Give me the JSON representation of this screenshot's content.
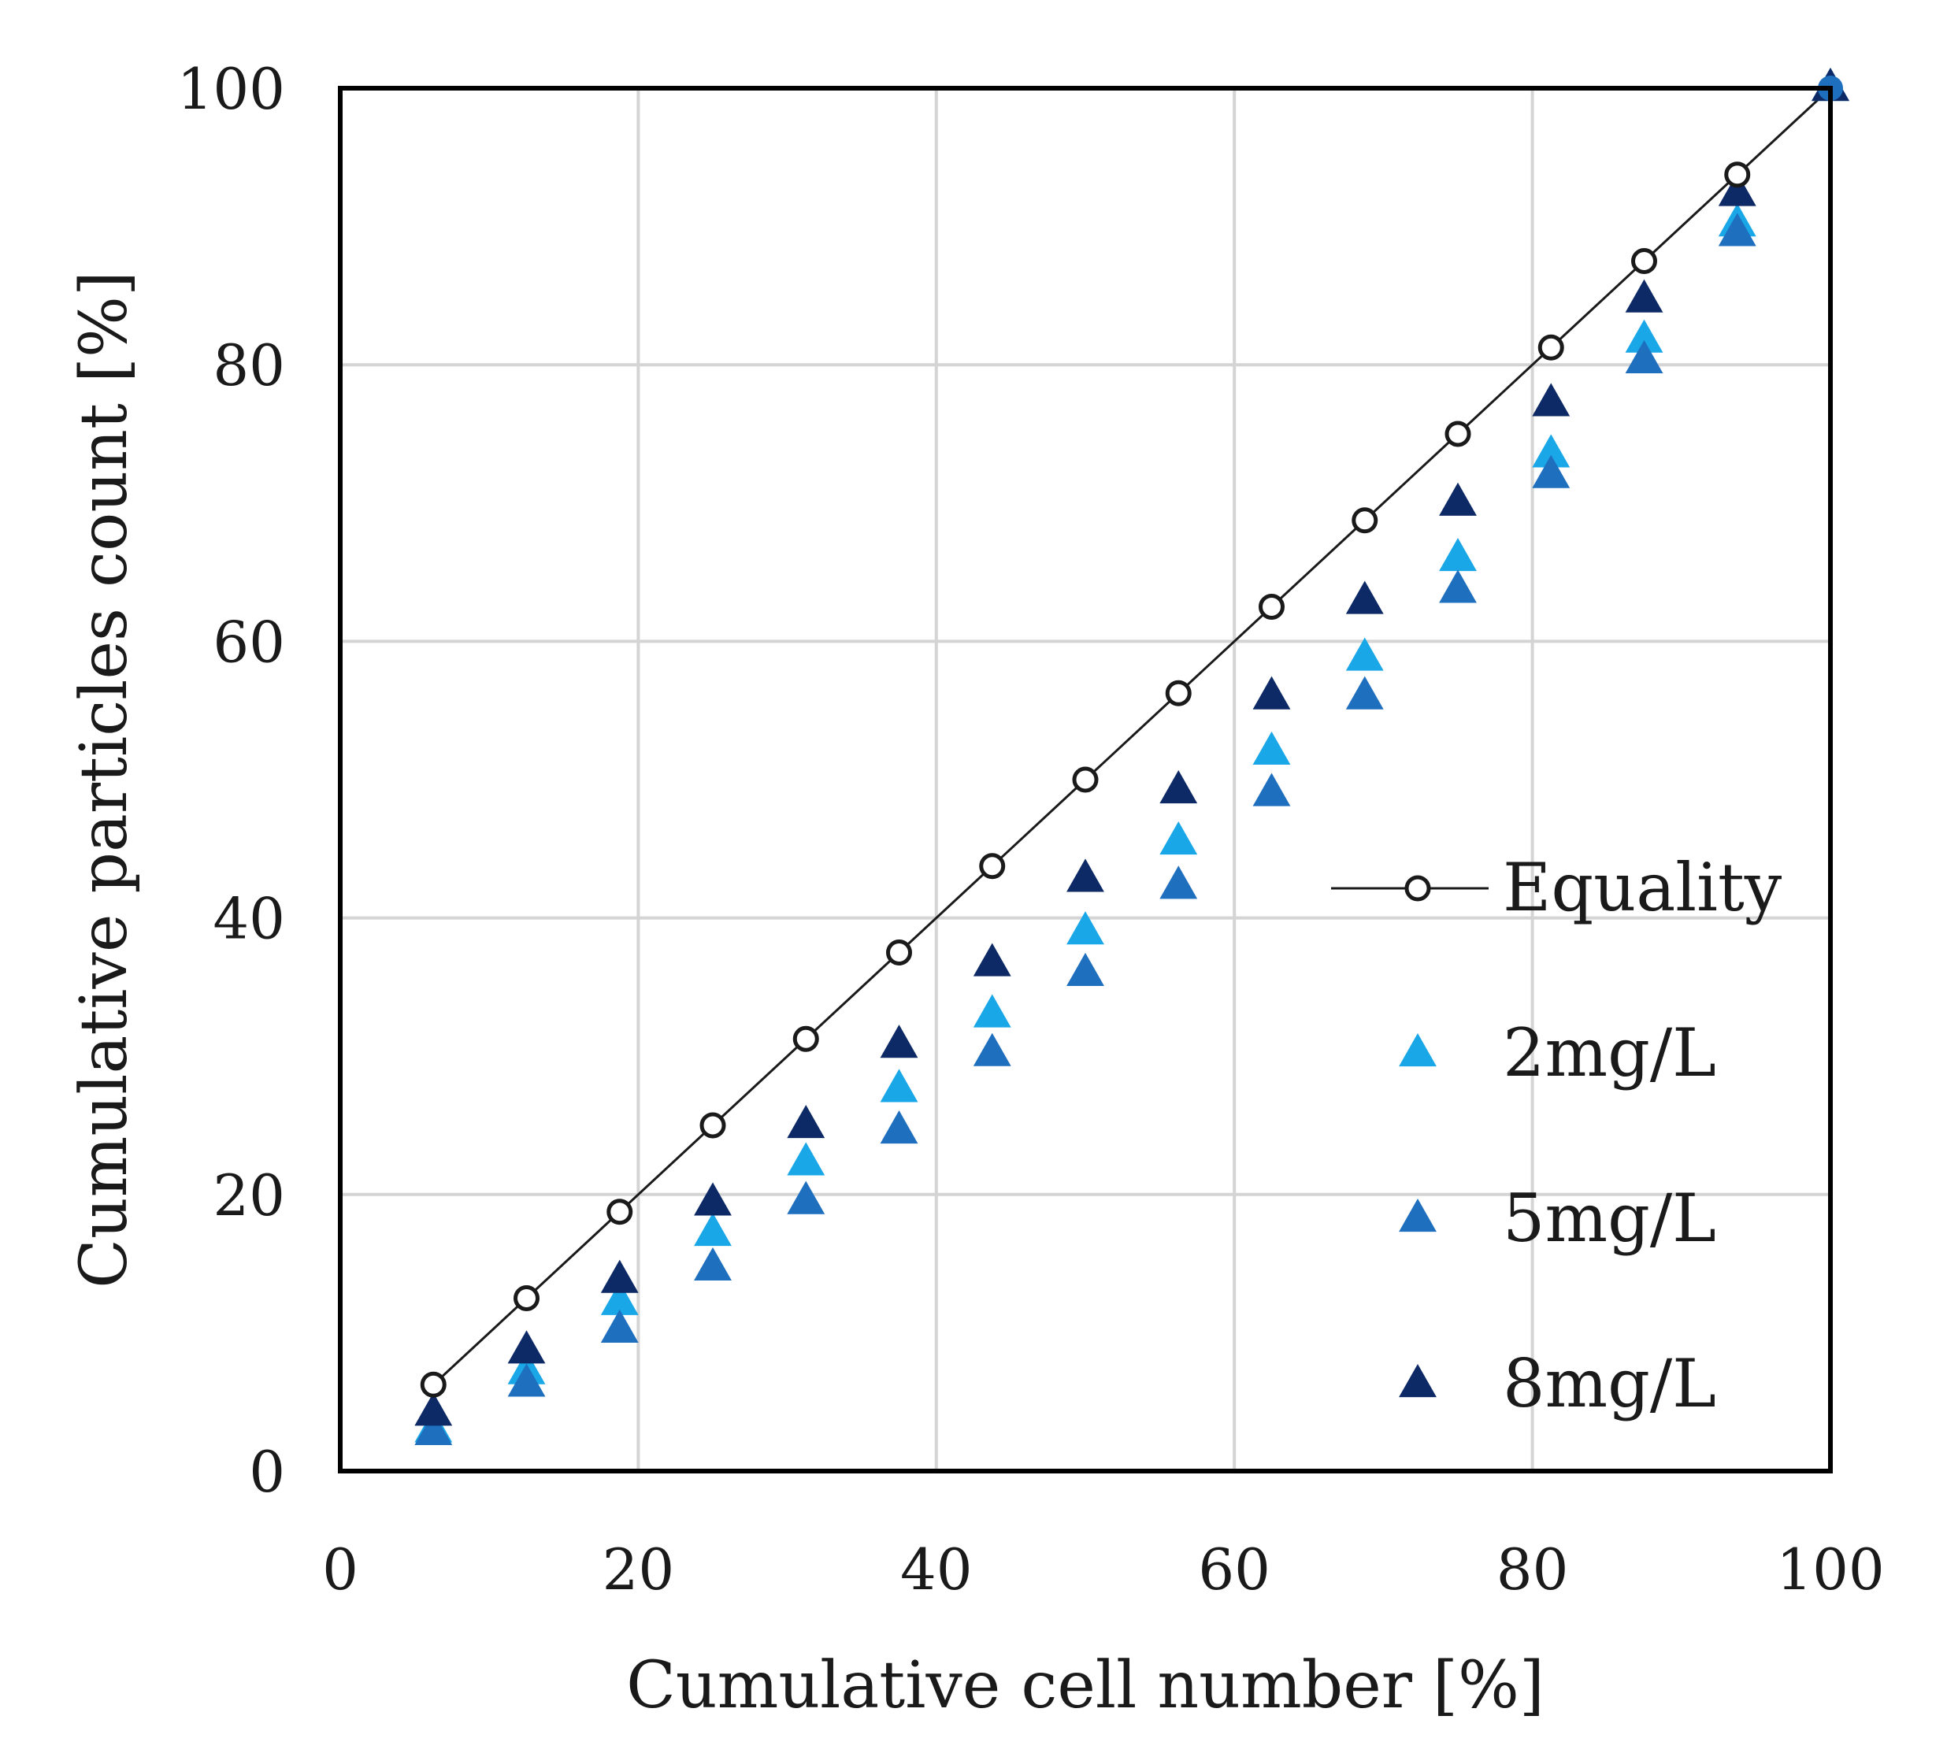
{
  "chart_data": {
    "type": "scatter",
    "title": "",
    "xlabel": "Cumulative cell number [%]",
    "ylabel": "Cumulative particles count [%]",
    "xlim": [
      0,
      100
    ],
    "ylim": [
      0,
      100
    ],
    "xticks": [
      "0",
      "20",
      "40",
      "60",
      "80",
      "100"
    ],
    "yticks": [
      "0",
      "20",
      "40",
      "60",
      "80",
      "100"
    ],
    "grid": true,
    "legend_position": "right",
    "x": [
      6.25,
      12.5,
      18.75,
      25,
      31.25,
      37.5,
      43.75,
      50,
      56.25,
      62.5,
      68.75,
      75,
      81.25,
      87.5,
      93.75,
      100
    ],
    "series": [
      {
        "name": "Equality",
        "marker": "circle-line",
        "color": "#1a1a1a",
        "values": [
          6.25,
          12.5,
          18.75,
          25,
          31.25,
          37.5,
          43.75,
          50,
          56.25,
          62.5,
          68.75,
          75,
          81.25,
          87.5,
          93.75,
          100
        ]
      },
      {
        "name": "2mg/L",
        "marker": "triangle",
        "color": "#1aa7e8",
        "values": [
          3.0,
          7.2,
          12.2,
          17.2,
          22.3,
          27.6,
          33.0,
          39.0,
          45.5,
          52.0,
          58.8,
          66.0,
          73.5,
          81.8,
          90.2,
          100
        ]
      },
      {
        "name": "5mg/L",
        "marker": "triangle",
        "color": "#1f6fbf",
        "values": [
          2.8,
          6.3,
          10.2,
          14.7,
          19.5,
          24.6,
          30.2,
          36.0,
          42.3,
          49.0,
          56.0,
          63.7,
          72.0,
          80.3,
          89.5,
          100
        ]
      },
      {
        "name": "8mg/L",
        "marker": "triangle",
        "color": "#0d2a66",
        "values": [
          4.2,
          8.7,
          13.8,
          19.4,
          25.0,
          30.8,
          36.7,
          42.8,
          49.2,
          56.0,
          62.9,
          70.0,
          77.2,
          84.7,
          92.4,
          100
        ]
      }
    ]
  }
}
